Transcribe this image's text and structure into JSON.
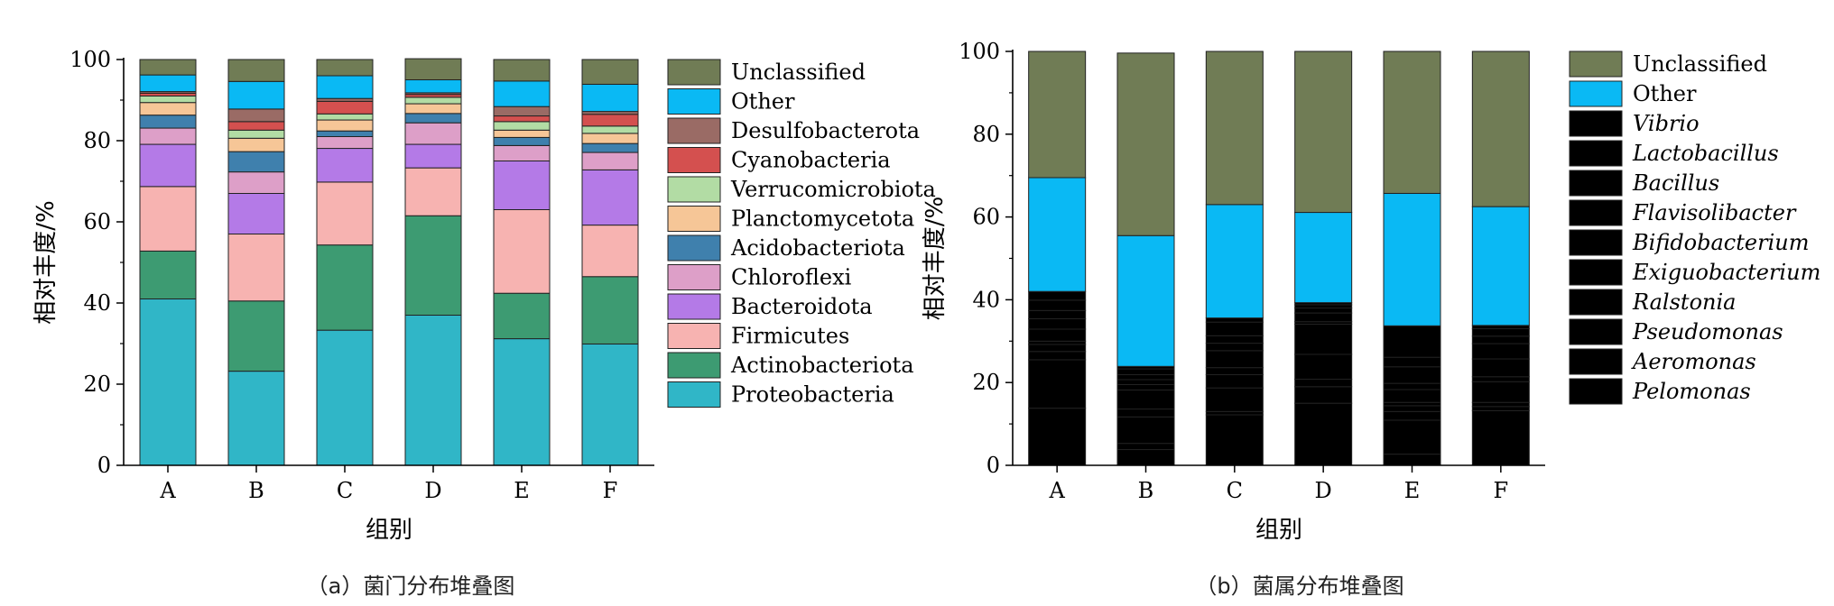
{
  "colors": {
    "Unclassified": "#707c55",
    "Other": "#0ab9f4",
    "Desulfobacterota": "#9a6b65",
    "Cyanobacteria": "#d4504f",
    "Verrucomicrobiota": "#b2dca4",
    "Planctomycetota": "#f6c697",
    "Acidobacteriota": "#3f80ad",
    "Chloroflexi": "#dd9fc8",
    "Bacteroidota": "#b47ae7",
    "Firmicutes": "#f7b3b1",
    "Actinobacteriota": "#3d9b72",
    "Proteobacteria": "#30b6c7"
  },
  "chart_data": [
    {
      "type": "bar",
      "stacked": true,
      "caption": "（a）菌门分布堆叠图",
      "xlabel": "组别",
      "ylabel": "相对丰度/%",
      "ylim": [
        0,
        100
      ],
      "yticks": [
        0,
        20,
        40,
        60,
        80,
        100
      ],
      "legend_position": "right",
      "categories": [
        "A",
        "B",
        "C",
        "D",
        "E",
        "F"
      ],
      "series": [
        {
          "name": "Proteobacteria",
          "italic": false,
          "values": [
            41.0,
            23.2,
            33.3,
            37.0,
            31.2,
            29.9
          ]
        },
        {
          "name": "Actinobacteriota",
          "italic": false,
          "values": [
            11.8,
            17.3,
            21.0,
            24.5,
            11.2,
            16.6
          ]
        },
        {
          "name": "Firmicutes",
          "italic": false,
          "values": [
            15.9,
            16.5,
            15.5,
            11.8,
            20.6,
            12.7
          ]
        },
        {
          "name": "Bacteroidota",
          "italic": false,
          "values": [
            10.4,
            10.0,
            8.3,
            5.8,
            12.0,
            13.6
          ]
        },
        {
          "name": "Chloroflexi",
          "italic": false,
          "values": [
            4.0,
            5.3,
            2.9,
            5.3,
            3.8,
            4.3
          ]
        },
        {
          "name": "Acidobacteriota",
          "italic": false,
          "values": [
            3.2,
            5.0,
            1.4,
            2.3,
            2.0,
            2.2
          ]
        },
        {
          "name": "Planctomycetota",
          "italic": false,
          "values": [
            3.1,
            3.3,
            2.7,
            2.4,
            1.8,
            2.5
          ]
        },
        {
          "name": "Verrucomicrobiota",
          "italic": false,
          "values": [
            1.6,
            2.0,
            1.5,
            1.6,
            2.1,
            1.8
          ]
        },
        {
          "name": "Cyanobacteria",
          "italic": false,
          "values": [
            0.7,
            2.1,
            3.1,
            0.7,
            1.4,
            2.9
          ]
        },
        {
          "name": "Desulfobacterota",
          "italic": false,
          "values": [
            0.4,
            3.1,
            0.7,
            0.4,
            2.3,
            0.7
          ]
        },
        {
          "name": "Other",
          "italic": false,
          "values": [
            4.1,
            6.8,
            5.6,
            3.2,
            6.3,
            6.7
          ]
        },
        {
          "name": "Unclassified",
          "italic": false,
          "values": [
            3.8,
            5.4,
            4.0,
            5.2,
            5.3,
            6.1
          ]
        }
      ]
    },
    {
      "type": "bar",
      "stacked": true,
      "caption": "（b）菌属分布堆叠图",
      "xlabel": "组别",
      "ylabel": "相对丰度/%",
      "ylim": [
        0,
        100
      ],
      "yticks": [
        0,
        20,
        40,
        60,
        80,
        100
      ],
      "legend_position": "right",
      "categories": [
        "A",
        "B",
        "C",
        "D",
        "E",
        "F"
      ],
      "series": [
        {
          "name": "Pelomonas",
          "italic": true,
          "values": [
            13.8,
            3.8,
            12.2,
            15.0,
            2.7,
            13.2
          ]
        },
        {
          "name": "Aeromonas",
          "italic": true,
          "values": [
            11.7,
            1.5,
            0.8,
            4.0,
            8.2,
            1.0
          ]
        },
        {
          "name": "Pseudomonas",
          "italic": true,
          "values": [
            2.0,
            6.4,
            5.7,
            1.8,
            2.1,
            1.0
          ]
        },
        {
          "name": "Ralstonia",
          "italic": true,
          "values": [
            1.7,
            1.9,
            3.2,
            6.0,
            1.4,
            5.0
          ]
        },
        {
          "name": "Exiguobacterium",
          "italic": true,
          "values": [
            0.8,
            4.6,
            1.7,
            7.3,
            0.8,
            1.2
          ]
        },
        {
          "name": "Bifidobacterium",
          "italic": true,
          "values": [
            2.9,
            1.3,
            4.1,
            0.6,
            3.1,
            4.3
          ]
        },
        {
          "name": "Flavisolibacter",
          "italic": true,
          "values": [
            2.5,
            1.2,
            1.8,
            2.1,
            1.5,
            3.7
          ]
        },
        {
          "name": "Bacillus",
          "italic": true,
          "values": [
            2.0,
            1.2,
            1.8,
            1.2,
            4.0,
            1.8
          ]
        },
        {
          "name": "Lactobacillus",
          "italic": true,
          "values": [
            2.5,
            1.4,
            3.3,
            0.8,
            2.3,
            1.8
          ]
        },
        {
          "name": "Vibrio",
          "italic": true,
          "values": [
            2.1,
            0.6,
            1.0,
            0.5,
            7.6,
            0.8
          ]
        },
        {
          "name": "Other",
          "italic": false,
          "values": [
            27.5,
            31.6,
            27.4,
            21.8,
            32.0,
            28.7
          ]
        },
        {
          "name": "Unclassified",
          "italic": false,
          "values": [
            30.5,
            44.1,
            37.0,
            38.9,
            34.3,
            37.5
          ]
        }
      ]
    }
  ]
}
